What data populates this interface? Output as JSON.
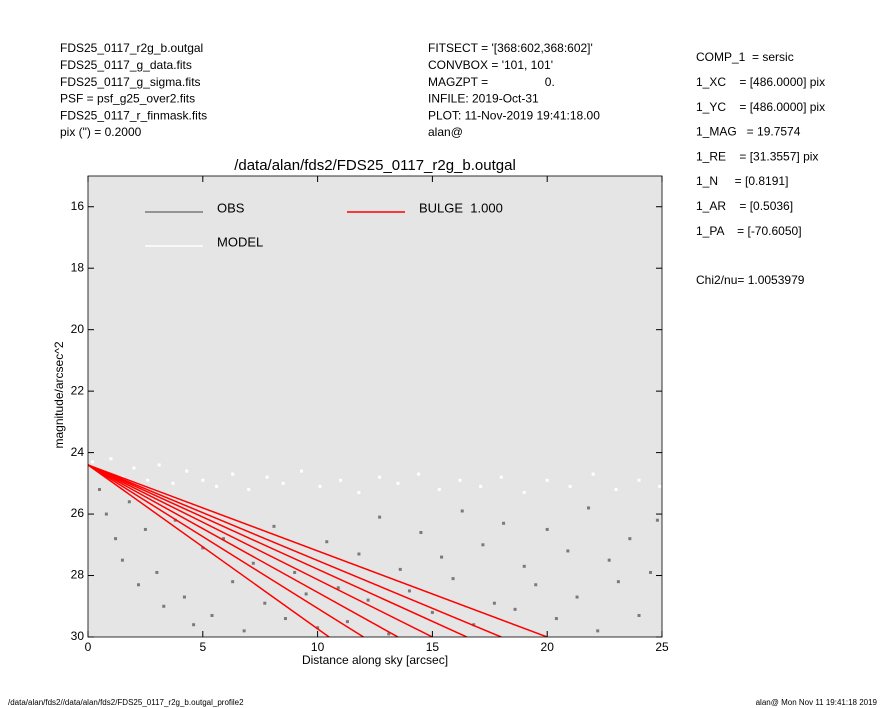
{
  "header": {
    "left": [
      "FDS25_0117_r2g_b.outgal",
      "FDS25_0117_g_data.fits",
      "FDS25_0117_g_sigma.fits",
      "PSF     = psf_g25_over2.fits",
      "FDS25_0117_r_finmask.fits",
      "pix (\") =  0.2000"
    ],
    "middle": [
      "FITSECT = '[368:602,368:602]'",
      "CONVBOX = '101, 101'",
      "MAGZPT =                 0.",
      "INFILE: 2019-Oct-31",
      "PLOT: 11-Nov-2019 19:41:18.00",
      "alan@"
    ],
    "params": [
      "COMP_1  = sersic",
      "1_XC    = [486.0000] pix",
      "1_YC    = [486.0000] pix",
      "1_MAG   = 19.7574",
      "1_RE    = [31.3557] pix",
      "1_N     = [0.8191]",
      "1_AR    = [0.5036]",
      "1_PA    = [-70.6050]"
    ],
    "chi2": "Chi2/nu=       1.0053979"
  },
  "footer": {
    "left": "/data/alan/fds2//data/alan/fds2/FDS25_0117_r2g_b.outgal_profile2",
    "right": "alan@  Mon Nov 11 19:41:18 2019"
  },
  "chart_data": {
    "type": "scatter",
    "title": "/data/alan/fds2/FDS25_0117_r2g_b.outgal",
    "xlabel": "Distance along sky [arcsec]",
    "ylabel": "magnitude/arcsec^2",
    "xlim": [
      0,
      25
    ],
    "ylim": [
      30,
      15
    ],
    "xticks": [
      0,
      5,
      10,
      15,
      20,
      25
    ],
    "yticks": [
      16,
      18,
      20,
      22,
      24,
      26,
      28,
      30
    ],
    "background": "#e5e5e5",
    "series": [
      {
        "name": "OBS",
        "color": "#7a7a7a",
        "mode": "points",
        "x": [
          0.5,
          0.8,
          1.2,
          1.5,
          1.8,
          2.2,
          2.5,
          3.0,
          3.3,
          3.8,
          4.2,
          4.6,
          5.0,
          5.4,
          5.9,
          6.3,
          6.8,
          7.2,
          7.7,
          8.1,
          8.6,
          9.0,
          9.5,
          10.0,
          10.4,
          10.9,
          11.3,
          11.8,
          12.2,
          12.7,
          13.1,
          13.6,
          14.0,
          14.5,
          15.0,
          15.4,
          15.9,
          16.3,
          16.8,
          17.2,
          17.7,
          18.1,
          18.6,
          19.0,
          19.5,
          20.0,
          20.4,
          20.9,
          21.3,
          21.8,
          22.2,
          22.7,
          23.1,
          23.6,
          24.0,
          24.5,
          24.8
        ],
        "values": [
          25.2,
          26.0,
          26.8,
          27.5,
          25.6,
          28.3,
          26.5,
          27.9,
          29.0,
          26.2,
          28.7,
          29.6,
          27.1,
          29.3,
          26.8,
          28.2,
          29.8,
          27.6,
          28.9,
          26.4,
          29.4,
          27.9,
          28.6,
          29.7,
          26.9,
          28.4,
          29.5,
          27.3,
          28.8,
          26.1,
          29.9,
          27.8,
          28.5,
          26.6,
          29.2,
          27.4,
          28.1,
          25.9,
          29.6,
          27.0,
          28.9,
          26.3,
          29.1,
          27.7,
          28.3,
          26.5,
          29.4,
          27.2,
          28.7,
          25.8,
          29.8,
          27.5,
          28.2,
          26.8,
          29.3,
          27.9,
          26.2
        ]
      },
      {
        "name": "MODEL",
        "color": "#ffffff",
        "mode": "points",
        "x": [
          0.2,
          0.6,
          1.0,
          1.5,
          2.0,
          2.6,
          3.1,
          3.7,
          4.3,
          5.0,
          5.6,
          6.3,
          7.0,
          7.8,
          8.5,
          9.3,
          10.1,
          11.0,
          11.8,
          12.7,
          13.5,
          14.4,
          15.3,
          16.2,
          17.1,
          18.0,
          19.0,
          20.0,
          21.0,
          22.0,
          23.0,
          24.0,
          24.9
        ],
        "values": [
          24.3,
          24.6,
          24.2,
          24.8,
          24.5,
          24.9,
          24.4,
          25.0,
          24.6,
          24.9,
          25.1,
          24.7,
          25.2,
          24.8,
          25.0,
          24.6,
          25.1,
          24.9,
          25.3,
          24.8,
          25.0,
          24.7,
          25.2,
          24.9,
          25.1,
          24.8,
          25.3,
          24.9,
          25.1,
          24.7,
          25.2,
          24.9,
          25.1
        ]
      },
      {
        "name": "BULGE  1.000",
        "color": "#ff0000",
        "mode": "lines",
        "lines": [
          {
            "x": [
              0,
              10.5
            ],
            "values": [
              24.4,
              30
            ]
          },
          {
            "x": [
              0,
              12
            ],
            "values": [
              24.4,
              30
            ]
          },
          {
            "x": [
              0,
              13.5
            ],
            "values": [
              24.4,
              30
            ]
          },
          {
            "x": [
              0,
              15
            ],
            "values": [
              24.4,
              30
            ]
          },
          {
            "x": [
              0,
              16.5
            ],
            "values": [
              24.4,
              30
            ]
          },
          {
            "x": [
              0,
              18
            ],
            "values": [
              24.4,
              30
            ]
          },
          {
            "x": [
              0,
              20
            ],
            "values": [
              24.4,
              30
            ]
          }
        ]
      }
    ]
  }
}
